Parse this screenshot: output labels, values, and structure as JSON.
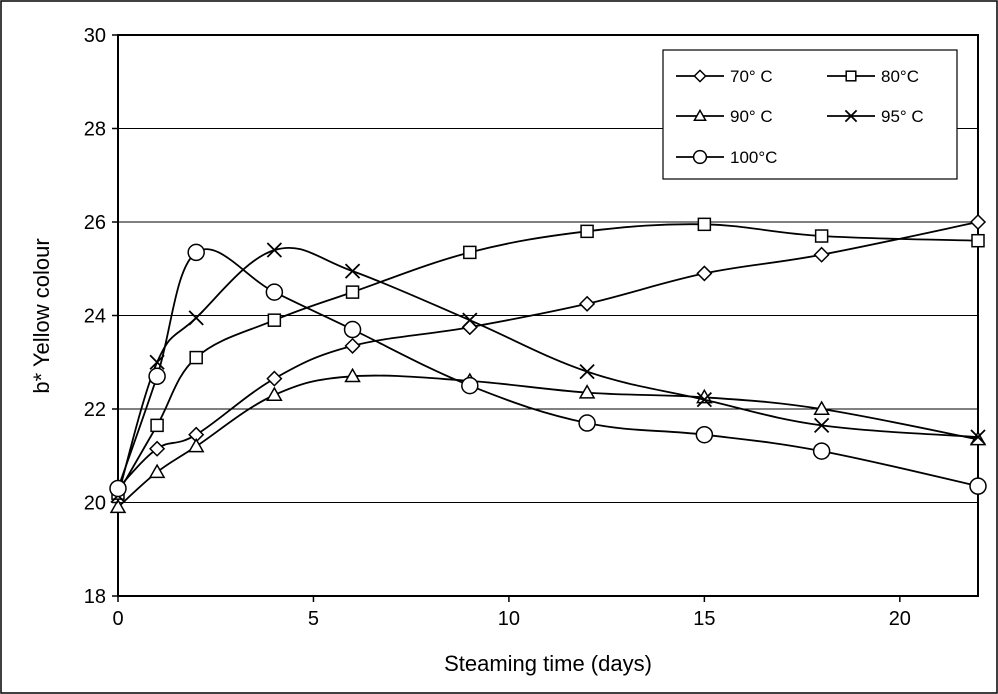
{
  "chart_data": {
    "type": "line",
    "xlabel": "Steaming time (days)",
    "ylabel": "b* Yellow colour",
    "xlim": [
      0,
      22
    ],
    "ylim": [
      18,
      30
    ],
    "x_ticks": [
      0,
      5,
      10,
      15,
      20
    ],
    "y_ticks": [
      18,
      20,
      22,
      24,
      26,
      28,
      30
    ],
    "grid": "horizontal",
    "legend_position": "top-right",
    "x": [
      0,
      1,
      2,
      4,
      6,
      9,
      12,
      15,
      18,
      22
    ],
    "series": [
      {
        "name": "70° C",
        "marker": "diamond",
        "values": [
          20.3,
          21.15,
          21.45,
          22.65,
          23.35,
          23.75,
          24.25,
          24.9,
          25.3,
          26.0
        ]
      },
      {
        "name": "80°C",
        "marker": "square",
        "values": [
          20.2,
          21.65,
          23.1,
          23.9,
          24.5,
          25.35,
          25.8,
          25.95,
          25.7,
          25.6
        ]
      },
      {
        "name": "90° C",
        "marker": "triangle",
        "values": [
          19.9,
          20.65,
          21.2,
          22.3,
          22.7,
          22.6,
          22.35,
          22.25,
          22.0,
          21.35
        ]
      },
      {
        "name": "95° C",
        "marker": "x",
        "values": [
          20.15,
          23.0,
          23.95,
          25.4,
          24.95,
          23.9,
          22.8,
          22.2,
          21.65,
          21.4
        ]
      },
      {
        "name": "100°C",
        "marker": "circle",
        "values": [
          20.3,
          22.7,
          25.35,
          24.5,
          23.7,
          22.5,
          21.7,
          21.45,
          21.1,
          20.35
        ]
      }
    ]
  }
}
